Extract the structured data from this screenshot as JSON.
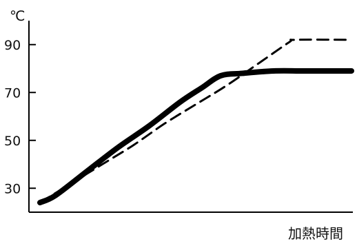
{
  "chart_data": {
    "type": "line",
    "title": "",
    "ylabel": "℃",
    "xlabel": "加熱時間",
    "ylim": [
      20,
      100
    ],
    "xlim": [
      0,
      100
    ],
    "y_ticks": [
      {
        "value": 30,
        "label": "30"
      },
      {
        "value": 50,
        "label": "50"
      },
      {
        "value": 70,
        "label": "70"
      },
      {
        "value": 90,
        "label": "90"
      }
    ],
    "grid": false,
    "legend": "none",
    "series": [
      {
        "style": "solid-thick",
        "color": "#000000",
        "x": [
          0,
          5,
          15,
          25,
          35,
          45,
          52,
          58,
          65,
          75,
          85,
          100
        ],
        "y": [
          24,
          27,
          37,
          47,
          56,
          66,
          72,
          77,
          78,
          79,
          79,
          79
        ]
      },
      {
        "style": "dashed",
        "color": "#000000",
        "x": [
          0,
          10,
          20,
          30,
          40,
          50,
          60,
          70,
          80,
          82,
          100
        ],
        "y": [
          24,
          32,
          40,
          48,
          57,
          65,
          73,
          82,
          91,
          92,
          92
        ]
      }
    ]
  }
}
